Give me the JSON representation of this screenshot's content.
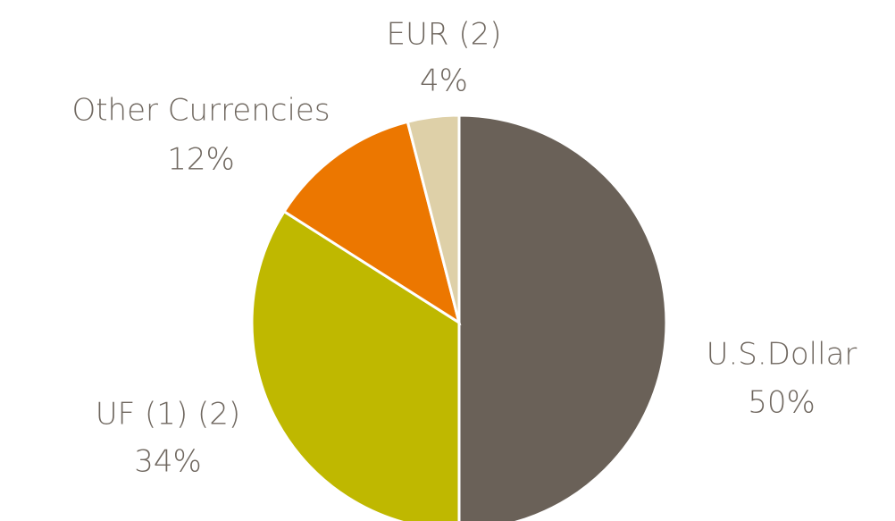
{
  "chart_data": {
    "type": "pie",
    "categories": [
      "U.S.Dollar",
      "UF (1) (2)",
      "Other Currencies",
      "EUR (2)"
    ],
    "values": [
      50,
      34,
      12,
      4
    ],
    "value_labels": [
      "50%",
      "34%",
      "12%",
      "4%"
    ],
    "colors": [
      "#6a6158",
      "#bfb800",
      "#ec7700",
      "#ded0a8"
    ]
  }
}
